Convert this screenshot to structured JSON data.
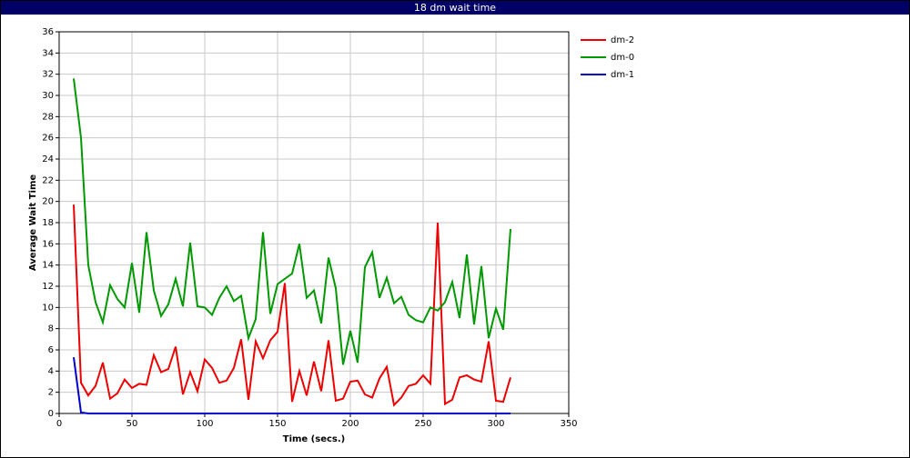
{
  "chart_data": {
    "type": "line",
    "title": "18 dm wait time",
    "xlabel": "Time (secs.)",
    "ylabel": "Average Wait Time",
    "x": [
      10,
      15,
      20,
      25,
      30,
      35,
      40,
      45,
      50,
      55,
      60,
      65,
      70,
      75,
      80,
      85,
      90,
      95,
      100,
      105,
      110,
      115,
      120,
      125,
      130,
      135,
      140,
      145,
      150,
      155,
      160,
      165,
      170,
      175,
      180,
      185,
      190,
      195,
      200,
      205,
      210,
      215,
      220,
      225,
      230,
      235,
      240,
      245,
      250,
      255,
      260,
      265,
      270,
      275,
      280,
      285,
      290,
      295,
      300,
      305,
      310
    ],
    "series": [
      {
        "name": "dm-2",
        "color": "#ee0000",
        "values": [
          19.7,
          2.9,
          1.7,
          2.6,
          4.8,
          1.4,
          1.9,
          3.2,
          2.4,
          2.8,
          2.7,
          5.5,
          3.9,
          4.2,
          6.3,
          1.8,
          3.9,
          2.1,
          5.1,
          4.3,
          2.9,
          3.1,
          4.3,
          7,
          1.3,
          6.8,
          5.2,
          6.9,
          7.7,
          12.3,
          1.1,
          4,
          1.7,
          4.9,
          2.1,
          6.9,
          1.2,
          1.4,
          3,
          3.1,
          1.8,
          1.5,
          3.3,
          4.4,
          0.8,
          1.5,
          2.6,
          2.8,
          3.6,
          2.8,
          18,
          0.9,
          1.3,
          3.4,
          3.6,
          3.2,
          3,
          6.8,
          1.2,
          1.1,
          3.4
        ]
      },
      {
        "name": "dm-0",
        "color": "#009900",
        "values": [
          31.6,
          26,
          14,
          10.5,
          8.6,
          12.1,
          10.8,
          10,
          14.2,
          9.5,
          17.1,
          11.6,
          9.2,
          10.3,
          12.7,
          10.1,
          16.1,
          10.1,
          10,
          9.3,
          10.9,
          12,
          10.6,
          11.1,
          7.1,
          8.9,
          17.1,
          9.4,
          12.2,
          12.7,
          13.2,
          16,
          10.9,
          11.6,
          8.5,
          14.7,
          11.8,
          4.6,
          7.8,
          4.8,
          13.8,
          15.2,
          10.9,
          12.8,
          10.4,
          11,
          9.3,
          8.8,
          8.6,
          10,
          9.7,
          10.5,
          12.4,
          9,
          15,
          8.4,
          13.9,
          7.1,
          9.9,
          7.9,
          17.4
        ]
      },
      {
        "name": "dm-1",
        "color": "#0000cc",
        "values": [
          5.3,
          0.1,
          0,
          0,
          0,
          0,
          0,
          0,
          0,
          0,
          0,
          0,
          0,
          0,
          0,
          0,
          0,
          0,
          0,
          0,
          0,
          0,
          0,
          0,
          0,
          0,
          0,
          0,
          0,
          0,
          0,
          0,
          0,
          0,
          0,
          0,
          0,
          0,
          0,
          0,
          0,
          0,
          0,
          0,
          0,
          0,
          0,
          0,
          0,
          0,
          0,
          0,
          0,
          0,
          0,
          0,
          0,
          0,
          0,
          0,
          0
        ]
      }
    ],
    "xlim": [
      0,
      350
    ],
    "xticks": [
      0,
      50,
      100,
      150,
      200,
      250,
      300,
      350
    ],
    "ylim": [
      0,
      36
    ],
    "yticks": [
      0,
      2,
      4,
      6,
      8,
      10,
      12,
      14,
      16,
      18,
      20,
      22,
      24,
      26,
      28,
      30,
      32,
      34,
      36
    ],
    "grid": true,
    "legend": "right"
  }
}
